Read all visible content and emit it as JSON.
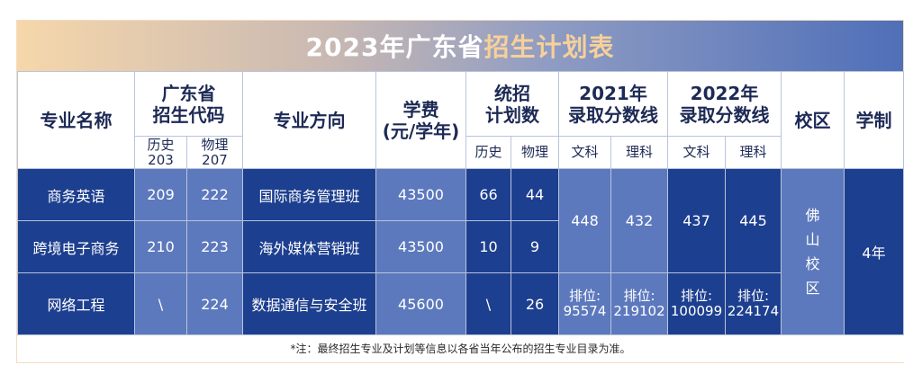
{
  "title": {
    "main": "2023年广东省",
    "highlight": "招生计划表"
  },
  "headers": {
    "major_name": "专业名称",
    "code": "广东省\n招生代码",
    "code_sub": [
      {
        "subject": "历史",
        "code": "203"
      },
      {
        "subject": "物理",
        "code": "207"
      }
    ],
    "direction": "专业方向",
    "tuition": "学费\n(元/学年)",
    "plan": "统招\n计划数",
    "plan_sub": [
      "历史",
      "物理"
    ],
    "y2021": "2021年\n录取分数线",
    "y2021_sub": [
      "文科",
      "理科"
    ],
    "y2022": "2022年\n录取分数线",
    "y2022_sub": [
      "文科",
      "理科"
    ],
    "campus": "校区",
    "duration": "学制"
  },
  "rows": [
    {
      "major": "商务英语",
      "code_hist": "209",
      "code_phys": "222",
      "direction": "国际商务管理班",
      "tuition": "43500",
      "plan_hist": "66",
      "plan_phys": "44"
    },
    {
      "major": "跨境电子商务",
      "code_hist": "210",
      "code_phys": "223",
      "direction": "海外媒体营销班",
      "tuition": "43500",
      "plan_hist": "10",
      "plan_phys": "9"
    },
    {
      "major": "网络工程",
      "code_hist": "\\",
      "code_phys": "224",
      "direction": "数据通信与安全班",
      "tuition": "45600",
      "plan_hist": "\\",
      "plan_phys": "26"
    }
  ],
  "scores": {
    "y2021_wen": "448",
    "y2021_li": "432",
    "y2022_wen": "437",
    "y2022_li": "445",
    "rank_2021_wen": "排位:\n95574",
    "rank_2021_li": "排位:\n219102",
    "rank_2022_wen": "排位:\n100099",
    "rank_2022_li": "排位:\n224174"
  },
  "campus_value": "佛\n山\n校\n区",
  "duration_value": "4年",
  "note": "*注：最终招生专业及计划等信息以各省当年公布的招生专业目录为准。",
  "colors": {
    "dark_cell": "#1d3f8f",
    "light_cell": "#5d79bd",
    "header_text": "#1d2a55",
    "title_highlight": "#f7d09a"
  }
}
